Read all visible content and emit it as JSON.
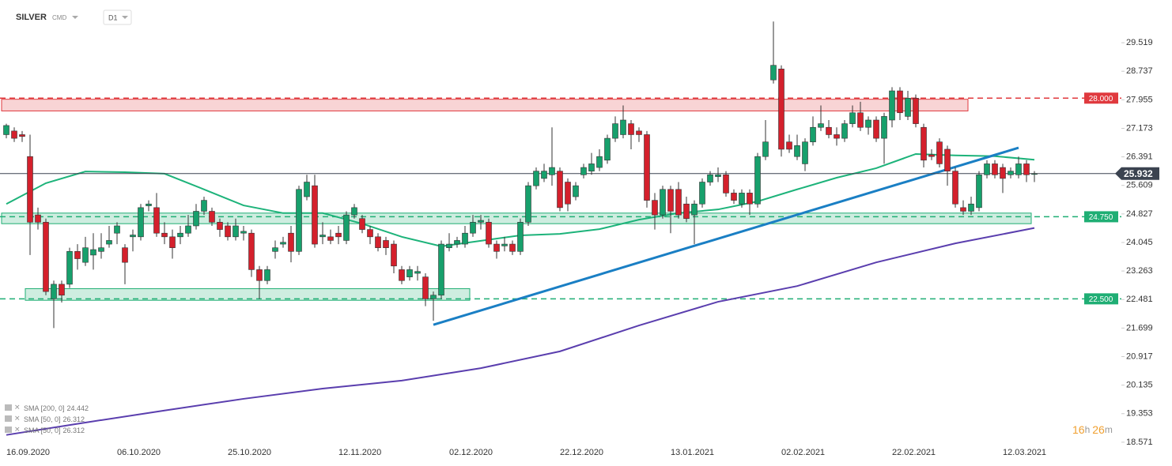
{
  "header": {
    "symbol": "SILVER",
    "market": "CMD",
    "interval": "D1"
  },
  "countdown": {
    "hours": "16",
    "hours_unit": "h",
    "minutes": "26",
    "minutes_unit": "m"
  },
  "legend": [
    {
      "name": "SMA [200, 0]",
      "value": 24.442
    },
    {
      "name": "SMA [50, 0]",
      "value": 26.312
    },
    {
      "name": "SMA [50, 0]",
      "value": 26.312
    }
  ],
  "chart_data": {
    "type": "candlestick",
    "categories": [
      "16.09.2020",
      null,
      null,
      null,
      null,
      null,
      null,
      null,
      null,
      null,
      null,
      null,
      null,
      null,
      "06.10.2020",
      null,
      null,
      null,
      null,
      null,
      null,
      null,
      null,
      null,
      null,
      null,
      null,
      null,
      "25.10.2020",
      null,
      null,
      null,
      null,
      null,
      null,
      null,
      null,
      null,
      null,
      null,
      null,
      null,
      "12.11.2020",
      null,
      null,
      null,
      null,
      null,
      null,
      null,
      null,
      null,
      null,
      null,
      null,
      null,
      "02.12.2020",
      null,
      null,
      null,
      null,
      null,
      null,
      null,
      null,
      null,
      null,
      null,
      null,
      null,
      "22.12.2020",
      null,
      null,
      null,
      null,
      null,
      null,
      null,
      null,
      null,
      null,
      null,
      null,
      null,
      "13.01.2021",
      null,
      null,
      null,
      null,
      null,
      null,
      null,
      null,
      null,
      null,
      null,
      null,
      null,
      "02.02.2021",
      null,
      null,
      null,
      null,
      null,
      null,
      null,
      null,
      null,
      null,
      null,
      null,
      null,
      "22.02.2021",
      null,
      null,
      null,
      null,
      null,
      null,
      null,
      null,
      null,
      null,
      null,
      null,
      null,
      "12.03.2021",
      null,
      null,
      null,
      null
    ],
    "open": [
      27.0,
      27.1,
      27.0,
      26.4,
      24.8,
      24.6,
      22.5,
      22.9,
      22.9,
      23.8,
      23.5,
      23.7,
      23.8,
      24.0,
      24.3,
      23.9,
      24.2,
      24.2,
      25.05,
      25.0,
      24.3,
      24.2,
      24.2,
      24.3,
      24.5,
      24.9,
      24.9,
      24.6,
      24.5,
      24.2,
      24.3,
      24.3,
      23.3,
      23.0,
      23.8,
      24.0,
      24.3,
      23.8,
      25.3,
      25.6,
      24.2,
      24.2,
      24.3,
      24.1,
      24.8,
      24.7,
      24.4,
      24.2,
      24.1,
      24.0,
      23.3,
      23.1,
      23.2,
      23.1,
      22.5,
      22.6,
      23.9,
      24.0,
      24.0,
      24.3,
      24.6,
      24.6,
      24.0,
      23.95,
      24.0,
      23.8,
      24.6,
      25.6,
      25.8,
      25.9,
      26.0,
      25.7,
      25.3,
      25.9,
      26.0,
      26.1,
      26.3,
      26.9,
      27.0,
      27.3,
      27.1,
      27.0,
      25.2,
      24.8,
      25.5,
      25.5,
      25.1,
      24.8,
      25.1,
      25.7,
      25.85,
      25.9,
      25.4,
      25.1,
      25.4,
      25.1,
      26.4,
      28.5,
      28.8,
      26.8,
      26.4,
      26.2,
      26.8,
      27.2,
      27.2,
      27.0,
      26.9,
      27.3,
      27.6,
      27.2,
      27.4,
      26.9,
      27.4,
      28.2,
      27.5,
      28.0,
      27.2,
      26.45,
      26.8,
      26.6,
      26.0,
      25.0,
      24.9,
      25.0,
      25.9,
      26.2,
      26.1,
      25.9,
      25.9,
      26.2,
      25.92
    ],
    "high": [
      27.3,
      27.2,
      27.1,
      27.0,
      25.0,
      24.7,
      23.0,
      23.0,
      23.9,
      24.0,
      24.2,
      24.3,
      24.3,
      24.5,
      24.6,
      24.0,
      24.4,
      25.1,
      25.2,
      25.4,
      24.6,
      24.4,
      24.5,
      24.8,
      25.1,
      25.3,
      25.0,
      24.7,
      24.6,
      24.7,
      24.5,
      24.4,
      23.4,
      23.4,
      24.1,
      24.2,
      24.5,
      25.6,
      25.9,
      25.9,
      24.6,
      24.4,
      24.5,
      24.9,
      25.1,
      24.8,
      24.5,
      24.3,
      24.2,
      24.1,
      23.4,
      23.4,
      23.4,
      23.2,
      22.7,
      24.1,
      24.3,
      24.2,
      24.5,
      24.8,
      24.8,
      24.7,
      24.1,
      24.2,
      24.1,
      24.7,
      25.7,
      26.1,
      26.2,
      27.2,
      26.1,
      25.8,
      25.7,
      26.2,
      26.5,
      26.6,
      27.0,
      27.5,
      27.8,
      27.4,
      27.2,
      27.1,
      25.4,
      25.6,
      25.6,
      25.7,
      25.3,
      25.2,
      25.8,
      26.0,
      26.1,
      26.0,
      25.5,
      25.5,
      25.5,
      26.5,
      27.4,
      30.1,
      28.9,
      27.0,
      27.0,
      26.9,
      27.5,
      27.8,
      27.4,
      27.2,
      27.4,
      27.8,
      27.9,
      27.5,
      27.5,
      27.6,
      28.3,
      28.3,
      28.2,
      28.1,
      27.3,
      26.6,
      26.9,
      26.7,
      26.1,
      25.2,
      25.3,
      26.0,
      26.3,
      26.3,
      26.2,
      26.1,
      26.4,
      26.3,
      26.0
    ],
    "low": [
      26.9,
      26.8,
      26.8,
      23.7,
      24.4,
      22.6,
      21.7,
      22.4,
      22.8,
      23.3,
      23.4,
      23.3,
      23.6,
      23.9,
      24.0,
      22.9,
      23.8,
      24.1,
      24.9,
      24.2,
      24.0,
      23.6,
      24.0,
      24.2,
      24.4,
      24.8,
      24.5,
      24.2,
      24.1,
      24.1,
      24.1,
      23.1,
      22.5,
      22.9,
      23.6,
      23.9,
      23.5,
      23.7,
      25.2,
      23.9,
      24.0,
      24.0,
      24.0,
      24.0,
      24.7,
      24.3,
      24.0,
      23.8,
      23.7,
      23.2,
      22.9,
      23.0,
      23.0,
      22.3,
      21.9,
      22.5,
      23.8,
      23.9,
      23.9,
      24.2,
      24.4,
      23.9,
      23.6,
      23.8,
      23.7,
      23.7,
      24.5,
      25.5,
      25.7,
      25.6,
      24.9,
      24.9,
      25.2,
      25.8,
      25.9,
      26.0,
      26.2,
      26.8,
      26.9,
      26.6,
      26.8,
      25.0,
      24.4,
      24.7,
      24.3,
      24.7,
      24.6,
      24.0,
      25.0,
      25.6,
      25.7,
      25.3,
      25.1,
      25.0,
      24.8,
      25.0,
      26.3,
      28.4,
      26.4,
      26.5,
      26.3,
      26.0,
      26.7,
      27.1,
      26.9,
      26.7,
      26.8,
      27.2,
      27.1,
      27.0,
      26.8,
      26.2,
      27.2,
      27.4,
      27.4,
      27.2,
      26.1,
      26.3,
      26.1,
      25.6,
      25.0,
      24.8,
      24.8,
      24.9,
      25.8,
      25.8,
      25.4,
      25.8,
      25.8,
      25.7,
      25.7
    ],
    "close": [
      27.25,
      26.9,
      26.95,
      24.6,
      24.6,
      22.7,
      22.9,
      22.6,
      23.8,
      23.6,
      23.9,
      23.85,
      23.9,
      24.1,
      24.5,
      23.5,
      24.25,
      25.0,
      25.1,
      24.3,
      24.2,
      23.9,
      24.3,
      24.5,
      24.9,
      25.2,
      24.6,
      24.4,
      24.2,
      24.5,
      24.35,
      23.3,
      23.0,
      23.3,
      23.9,
      24.05,
      23.8,
      25.5,
      25.7,
      24.0,
      24.25,
      24.1,
      24.2,
      24.8,
      25.0,
      24.4,
      24.2,
      23.9,
      23.9,
      23.4,
      23.0,
      23.3,
      23.25,
      22.5,
      22.6,
      24.0,
      24.0,
      24.1,
      24.3,
      24.6,
      24.65,
      24.0,
      23.8,
      24.0,
      23.8,
      24.6,
      25.6,
      26.0,
      26.0,
      26.1,
      25.0,
      25.1,
      25.6,
      26.1,
      26.2,
      26.4,
      26.9,
      27.3,
      27.4,
      27.0,
      27.0,
      25.2,
      24.8,
      25.5,
      24.9,
      24.8,
      24.7,
      25.1,
      25.7,
      25.9,
      25.9,
      25.4,
      25.2,
      25.4,
      25.1,
      26.4,
      26.8,
      28.9,
      26.6,
      26.6,
      26.7,
      26.8,
      27.2,
      27.3,
      27.0,
      26.9,
      27.3,
      27.6,
      27.2,
      27.4,
      26.9,
      27.5,
      28.2,
      27.6,
      28.0,
      27.3,
      26.3,
      26.4,
      26.2,
      26.0,
      25.1,
      24.9,
      25.1,
      25.9,
      26.2,
      25.9,
      25.8,
      26.0,
      26.2,
      25.9,
      25.932
    ],
    "up_color": "#17a06c",
    "down_color": "#d4202c",
    "ylim": [
      18.46,
      30.69
    ],
    "yticks": [
      29.519,
      28.737,
      27.955,
      27.173,
      26.391,
      25.609,
      24.827,
      24.045,
      23.263,
      22.481,
      21.699,
      20.917,
      20.135,
      19.353,
      18.571
    ],
    "indicators": [
      {
        "color": "#5a3eae",
        "x": [
          0,
          10,
          20,
          30,
          40,
          50,
          60,
          70,
          80,
          90,
          100,
          110,
          120,
          130
        ],
        "values": [
          18.77,
          19.11,
          19.44,
          19.76,
          20.04,
          20.26,
          20.6,
          21.06,
          21.77,
          22.42,
          22.85,
          23.5,
          24.02,
          24.442
        ]
      },
      {
        "color": "#1db37a",
        "x": [
          0,
          5,
          10,
          15,
          20,
          25,
          30,
          35,
          40,
          45,
          50,
          55,
          60,
          65,
          70,
          75,
          80,
          85,
          90,
          95,
          100,
          105,
          110,
          115,
          120,
          125,
          130
        ],
        "values": [
          25.1,
          25.67,
          25.99,
          25.97,
          25.93,
          25.5,
          25.06,
          24.85,
          24.85,
          24.56,
          24.2,
          23.94,
          24.09,
          24.24,
          24.28,
          24.41,
          24.67,
          24.85,
          24.95,
          25.17,
          25.5,
          25.82,
          26.08,
          26.47,
          26.43,
          26.41,
          26.312
        ]
      }
    ],
    "trendline": {
      "from_index": 54,
      "from": 21.79,
      "to_index": 128,
      "to": 26.64,
      "color": "#1a7fc4"
    },
    "zones": [
      {
        "from_index": 0,
        "to_index": 121,
        "low": 27.65,
        "high": 27.97,
        "color": "#e0393e"
      },
      {
        "from_index": 0,
        "to_index": 129,
        "low": 24.56,
        "high": 24.85,
        "color": "#1fae74"
      },
      {
        "from_index": 3,
        "to_index": 58,
        "low": 22.46,
        "high": 22.78,
        "color": "#1fae74"
      }
    ],
    "levels": [
      {
        "value": 28,
        "label": "28.000",
        "color": "#e0393e"
      },
      {
        "value": 24.75,
        "label": "24.750",
        "color": "#1fae74"
      },
      {
        "value": 22.5,
        "label": "22.500",
        "color": "#1fae74"
      }
    ],
    "last_price": {
      "value": 25.932,
      "label": "25.932",
      "color": "#3b4350"
    }
  }
}
